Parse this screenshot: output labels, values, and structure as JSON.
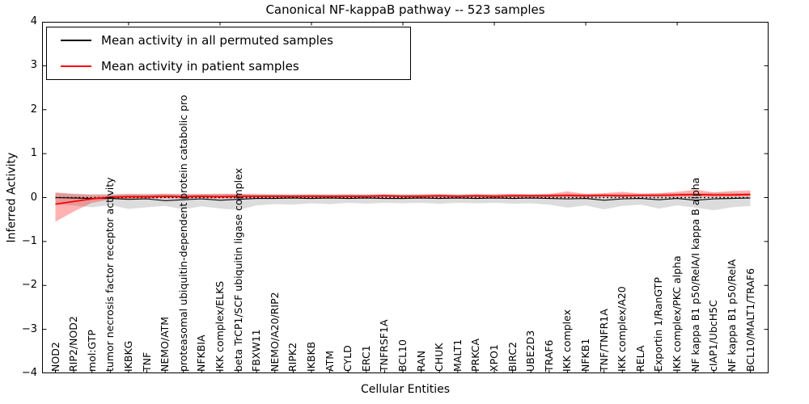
{
  "figure": {
    "title": "Canonical NF-kappaB pathway -- 523 samples",
    "xlabel": "Cellular Entities",
    "ylabel": "Inferred Activity"
  },
  "legend": {
    "items": [
      {
        "label": "Mean activity in all permuted samples",
        "color": "#000000"
      },
      {
        "label": "Mean activity in patient samples",
        "color": "#ff0000"
      }
    ]
  },
  "axes": {
    "ytick_labels": [
      "4",
      "3",
      "2",
      "1",
      "0",
      "−1",
      "−2",
      "−3",
      "−4"
    ],
    "ylim": [
      -4,
      4
    ]
  },
  "chart_data": {
    "type": "line",
    "title": "Canonical NF-kappaB pathway -- 523 samples",
    "xlabel": "Cellular Entities",
    "ylabel": "Inferred Activity",
    "ylim": [
      -4,
      4
    ],
    "grid": false,
    "legend_position": "upper left",
    "zero_line": {
      "y": 0,
      "style": "dotted",
      "color": "#000000"
    },
    "categories": [
      "NOD2",
      "RIP2/NOD2",
      "mol:GTP",
      "tumor necrosis factor receptor activity",
      "IKBKG",
      "TNF",
      "NEMO/ATM",
      "proteasomal ubiquitin-dependent protein catabolic pro",
      "NFKBIA",
      "IKK complex/ELKS",
      "beta TrCP1/SCF ubiquitin ligase complex",
      "FBXW11",
      "NEMO/A20/RIP2",
      "RIPK2",
      "IKBKB",
      "ATM",
      "CYLD",
      "ERC1",
      "TNFRSF1A",
      "BCL10",
      "RAN",
      "CHUK",
      "MALT1",
      "PRKCA",
      "XPO1",
      "BIRC2",
      "UBE2D3",
      "TRAF6",
      "IKK complex",
      "NFKB1",
      "TNF/TNFR1A",
      "IKK complex/A20",
      "RELA",
      "Exportin 1/RanGTP",
      "IKK complex/PKC alpha",
      "NF kappa B1 p50/RelA/I kappa B alpha",
      "cIAP1/UbcH5C",
      "NF kappa B1 p50/RelA",
      "BCL10/MALT1/TRAF6"
    ],
    "series": [
      {
        "name": "Mean activity in all permuted samples",
        "color": "#000000",
        "values": [
          0.0,
          -0.01,
          -0.02,
          -0.02,
          -0.04,
          -0.03,
          -0.07,
          -0.05,
          -0.03,
          -0.06,
          -0.04,
          -0.02,
          -0.02,
          -0.01,
          -0.02,
          -0.01,
          -0.02,
          -0.01,
          -0.02,
          -0.02,
          -0.01,
          -0.02,
          -0.01,
          -0.02,
          -0.01,
          -0.02,
          -0.01,
          -0.02,
          -0.03,
          -0.02,
          -0.06,
          -0.03,
          -0.02,
          -0.05,
          -0.02,
          -0.06,
          -0.03,
          -0.02,
          -0.01
        ]
      },
      {
        "name": "Mean activity in patient samples",
        "color": "#ff0000",
        "values": [
          -0.15,
          -0.09,
          -0.03,
          0.01,
          0.02,
          0.02,
          0.03,
          0.02,
          0.03,
          0.02,
          0.03,
          0.03,
          0.03,
          0.03,
          0.03,
          0.03,
          0.03,
          0.03,
          0.04,
          0.03,
          0.03,
          0.04,
          0.03,
          0.04,
          0.03,
          0.04,
          0.04,
          0.04,
          0.05,
          0.04,
          0.05,
          0.04,
          0.05,
          0.05,
          0.06,
          0.07,
          0.06,
          0.06,
          0.07
        ]
      }
    ],
    "bands": [
      {
        "name": "permuted-samples-range",
        "fill": "rgba(128,128,128,0.28)",
        "upper": [
          0.1,
          0.09,
          0.08,
          0.09,
          0.08,
          0.09,
          0.08,
          0.09,
          0.08,
          0.09,
          0.08,
          0.09,
          0.08,
          0.08,
          0.08,
          0.08,
          0.08,
          0.08,
          0.08,
          0.08,
          0.08,
          0.08,
          0.08,
          0.08,
          0.08,
          0.08,
          0.08,
          0.09,
          0.09,
          0.09,
          0.09,
          0.09,
          0.09,
          0.1,
          0.1,
          0.1,
          0.11,
          0.11,
          0.1
        ],
        "lower": [
          -0.16,
          -0.18,
          -0.22,
          -0.17,
          -0.26,
          -0.22,
          -0.19,
          -0.27,
          -0.2,
          -0.25,
          -0.28,
          -0.18,
          -0.15,
          -0.16,
          -0.13,
          -0.15,
          -0.12,
          -0.14,
          -0.12,
          -0.13,
          -0.12,
          -0.14,
          -0.12,
          -0.13,
          -0.12,
          -0.14,
          -0.13,
          -0.16,
          -0.23,
          -0.18,
          -0.27,
          -0.19,
          -0.16,
          -0.25,
          -0.18,
          -0.23,
          -0.29,
          -0.22,
          -0.19
        ]
      },
      {
        "name": "patient-samples-range",
        "fill": "rgba(255,0,0,0.30)",
        "upper": [
          0.12,
          0.08,
          0.06,
          0.06,
          0.08,
          0.07,
          0.09,
          0.07,
          0.08,
          0.08,
          0.09,
          0.07,
          0.07,
          0.06,
          0.07,
          0.06,
          0.07,
          0.06,
          0.07,
          0.06,
          0.07,
          0.07,
          0.06,
          0.07,
          0.07,
          0.08,
          0.07,
          0.08,
          0.14,
          0.08,
          0.1,
          0.13,
          0.09,
          0.1,
          0.13,
          0.18,
          0.12,
          0.15,
          0.16
        ],
        "lower": [
          -0.55,
          -0.32,
          -0.12,
          -0.04,
          -0.02,
          -0.02,
          -0.01,
          -0.02,
          -0.01,
          -0.02,
          -0.01,
          0.0,
          0.0,
          0.0,
          0.0,
          0.0,
          0.0,
          0.0,
          0.01,
          0.0,
          0.0,
          0.01,
          0.0,
          0.01,
          0.0,
          0.01,
          0.01,
          0.01,
          0.01,
          0.01,
          0.02,
          0.01,
          0.02,
          0.02,
          0.02,
          0.02,
          0.02,
          0.02,
          0.03
        ]
      }
    ]
  }
}
